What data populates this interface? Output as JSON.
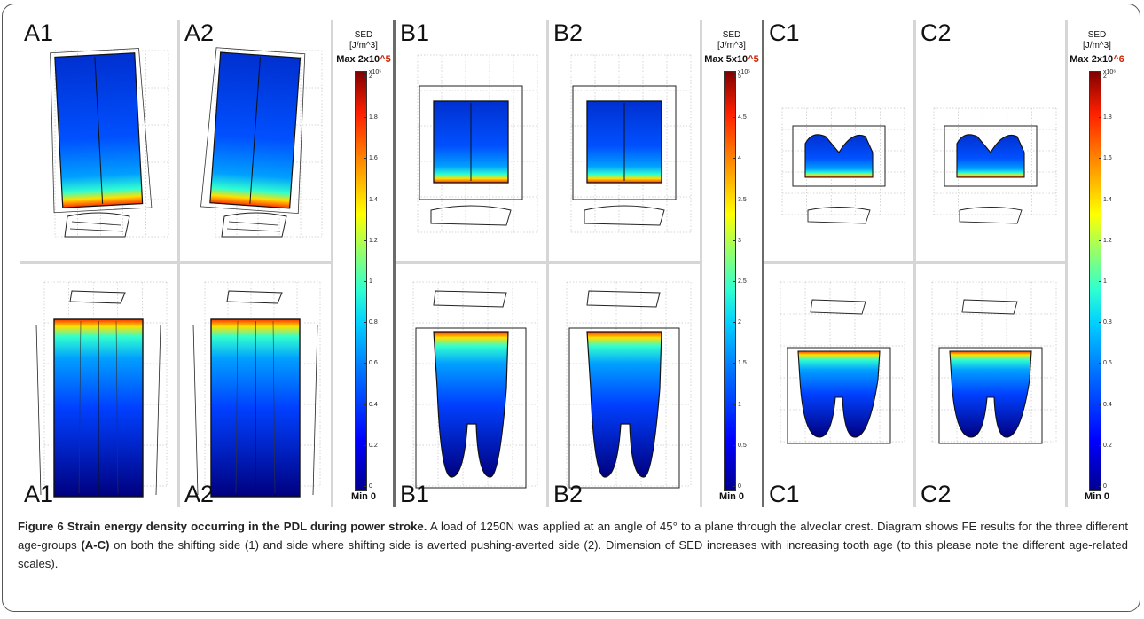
{
  "groups": [
    {
      "id": "A",
      "top_labels": [
        "A1",
        "A2"
      ],
      "bottom_labels": [
        "A1",
        "A2"
      ],
      "colorbar": {
        "title": "SED",
        "unit": "[J/m^3]",
        "max_prefix": "Max 2x10",
        "max_exp": "^5",
        "min_label": "Min 0",
        "multiplier": "x10⁵",
        "ticks": [
          "2",
          "1.8",
          "1.6",
          "1.4",
          "1.2",
          "1",
          "0.8",
          "0.6",
          "0.4",
          "0.2",
          "0"
        ]
      }
    },
    {
      "id": "B",
      "top_labels": [
        "B1",
        "B2"
      ],
      "bottom_labels": [
        "B1",
        "B2"
      ],
      "colorbar": {
        "title": "SED",
        "unit": "[J/m^3]",
        "max_prefix": "Max 5x10",
        "max_exp": "^5",
        "min_label": "Min 0",
        "multiplier": "x10⁵",
        "ticks": [
          "5",
          "4.5",
          "4",
          "3.5",
          "3",
          "2.5",
          "2",
          "1.5",
          "1",
          "0.5",
          "0"
        ]
      }
    },
    {
      "id": "C",
      "top_labels": [
        "C1",
        "C2"
      ],
      "bottom_labels": [
        "C1",
        "C2"
      ],
      "colorbar": {
        "title": "SED",
        "unit": "[J/m^3]",
        "max_prefix": "Max 2x10",
        "max_exp": "^6",
        "min_label": "Min 0",
        "multiplier": "x10⁶",
        "ticks": [
          "2",
          "1.8",
          "1.6",
          "1.4",
          "1.2",
          "1",
          "0.8",
          "0.6",
          "0.4",
          "0.2",
          "0"
        ]
      }
    }
  ],
  "caption": {
    "title": "Figure 6 Strain energy density occurring in the PDL during power stroke.",
    "body_1": " A load of 1250N was applied at an angle of 45° to a plane through the alveolar crest. Diagram shows FE results for the three different age-groups ",
    "groups_ref": "(A-C)",
    "body_2": "  on both the shifting side (1) and side where shifting side is averted pushing-averted side (2). Dimension of SED increases with increasing tooth age (to this please note the different age-related scales)."
  },
  "colors": {
    "frame": "#555555",
    "exponent_red": "#cc2200",
    "sed_low": "#00008f",
    "sed_mid": "#a0ff60",
    "sed_high": "#ff2000"
  }
}
